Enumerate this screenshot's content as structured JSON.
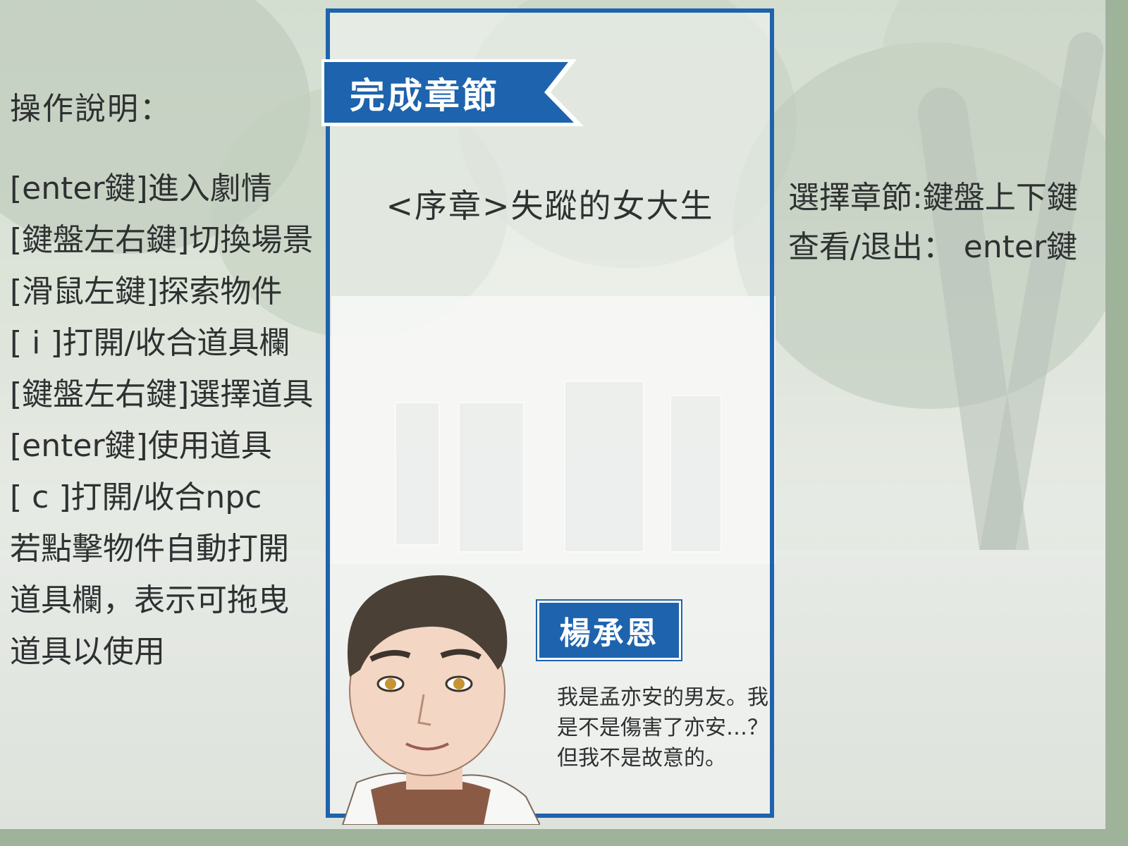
{
  "help": {
    "title": "操作說明：",
    "lines": [
      "[enter鍵]進入劇情",
      "[鍵盤左右鍵]切換場景",
      "[滑鼠左鍵]探索物件",
      "[ i ]打開/收合道具欄",
      "[鍵盤左右鍵]選擇道具",
      "[enter鍵]使用道具",
      "[ c ]打開/收合npc",
      "若點擊物件自動打開",
      "道具欄，表示可拖曳",
      "道具以使用"
    ]
  },
  "right_help": {
    "select": "選擇章節:鍵盤上下鍵",
    "view_exit": "查看/退出： enter鍵"
  },
  "banner": {
    "label": "完成章節"
  },
  "chapter": {
    "title": "<序章>失蹤的女大生"
  },
  "character": {
    "name": "楊承恩",
    "dialogue": "我是孟亦安的男友。我是不是傷害了亦安…？但我不是故意的。"
  },
  "colors": {
    "accent": "#1e63ad",
    "text": "#2e3131"
  }
}
